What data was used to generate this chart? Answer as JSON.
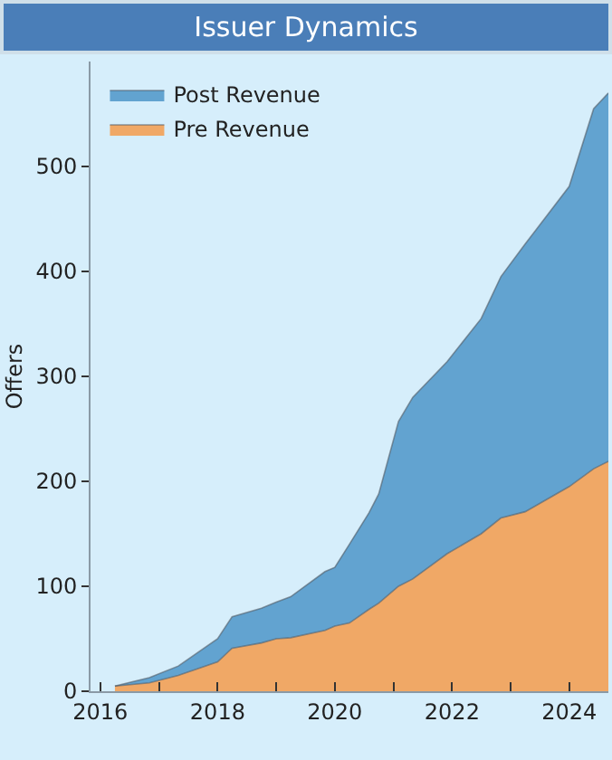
{
  "chart_data": {
    "type": "area",
    "title": "Issuer Dynamics",
    "ylabel": "Offers",
    "stacked": true,
    "x": [
      "2016-04",
      "2016-11",
      "2017-05",
      "2018-01",
      "2018-04",
      "2018-10",
      "2019-01",
      "2019-04",
      "2019-11",
      "2020-01",
      "2020-04",
      "2020-08",
      "2020-10",
      "2021-02",
      "2021-05",
      "2021-12",
      "2022-07",
      "2022-11",
      "2023-04",
      "2024-01",
      "2024-06",
      "2024-09"
    ],
    "series": [
      {
        "name": "Pre Revenue",
        "color": "#f0a866",
        "values": [
          5,
          8,
          15,
          28,
          41,
          46,
          50,
          51,
          58,
          62,
          65,
          78,
          84,
          100,
          107,
          131,
          150,
          165,
          171,
          195,
          212,
          219
        ]
      },
      {
        "name": "Post Revenue",
        "color": "#62a3d0",
        "values": [
          0,
          5,
          9,
          22,
          30,
          33,
          35,
          39,
          56,
          56,
          75,
          92,
          104,
          157,
          173,
          183,
          205,
          230,
          255,
          286,
          343,
          351
        ]
      }
    ],
    "xlim": [
      "2015-11",
      "2024-09"
    ],
    "xticks": [
      {
        "value": "2016",
        "label": "2016"
      },
      {
        "value": "2017",
        "label": null
      },
      {
        "value": "2018",
        "label": "2018"
      },
      {
        "value": "2019",
        "label": null
      },
      {
        "value": "2020",
        "label": "2020"
      },
      {
        "value": "2021",
        "label": null
      },
      {
        "value": "2022",
        "label": "2022"
      },
      {
        "value": "2023",
        "label": null
      },
      {
        "value": "2024",
        "label": "2024"
      }
    ],
    "ylim": [
      0,
      600
    ],
    "yticks": [
      0,
      100,
      200,
      300,
      400,
      500
    ],
    "grid": false,
    "legend": "top left"
  }
}
